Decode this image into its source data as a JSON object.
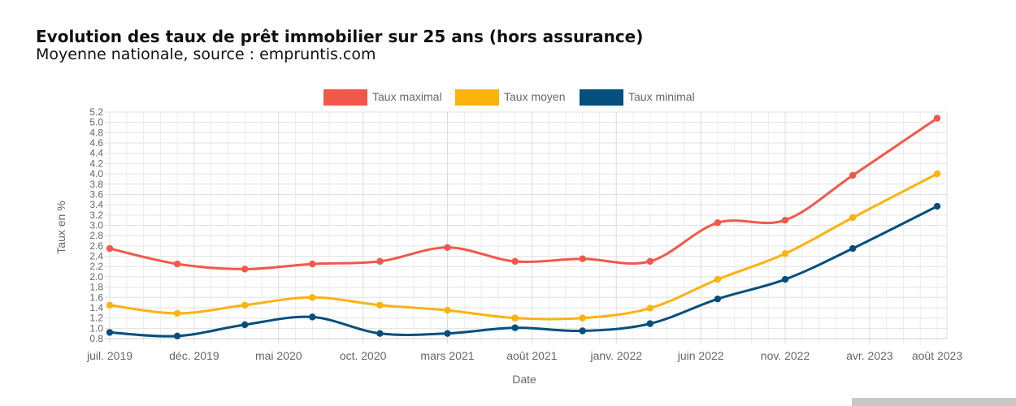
{
  "header": {
    "title": "Evolution des taux de prêt immobilier sur 25 ans (hors assurance)",
    "subtitle": "Moyenne nationale, source : empruntis.com"
  },
  "chart_data": {
    "type": "line",
    "x": [
      "juil. 2019",
      "déc. 2019",
      "mai 2020",
      "oct. 2020",
      "mars 2021",
      "août 2021",
      "janv. 2022",
      "juin 2022",
      "nov. 2022",
      "avr. 2023",
      "août 2023"
    ],
    "x_positions": [
      0,
      5,
      10,
      15,
      20,
      25,
      30,
      35,
      40,
      45,
      49
    ],
    "series": [
      {
        "name": "Taux maximal",
        "color": "#f1584a",
        "points": [
          [
            0,
            2.55
          ],
          [
            4,
            2.25
          ],
          [
            8,
            2.15
          ],
          [
            12,
            2.25
          ],
          [
            16,
            2.3
          ],
          [
            20,
            2.57
          ],
          [
            24,
            2.3
          ],
          [
            28,
            2.35
          ],
          [
            32,
            2.3
          ],
          [
            36,
            3.05
          ],
          [
            40,
            3.1
          ],
          [
            44,
            3.97
          ],
          [
            49,
            5.08
          ]
        ]
      },
      {
        "name": "Taux moyen",
        "color": "#fbb30e",
        "points": [
          [
            0,
            1.45
          ],
          [
            4,
            1.29
          ],
          [
            8,
            1.45
          ],
          [
            12,
            1.6
          ],
          [
            16,
            1.45
          ],
          [
            20,
            1.35
          ],
          [
            24,
            1.2
          ],
          [
            28,
            1.2
          ],
          [
            32,
            1.39
          ],
          [
            36,
            1.95
          ],
          [
            40,
            2.45
          ],
          [
            44,
            3.15
          ],
          [
            49,
            4.0
          ]
        ]
      },
      {
        "name": "Taux minimal",
        "color": "#044f7e",
        "points": [
          [
            0,
            0.92
          ],
          [
            4,
            0.85
          ],
          [
            8,
            1.07
          ],
          [
            12,
            1.22
          ],
          [
            16,
            0.9
          ],
          [
            20,
            0.9
          ],
          [
            24,
            1.01
          ],
          [
            28,
            0.95
          ],
          [
            32,
            1.09
          ],
          [
            36,
            1.57
          ],
          [
            40,
            1.95
          ],
          [
            44,
            2.55
          ],
          [
            49,
            3.37
          ]
        ]
      }
    ],
    "yticks": [
      "0.8",
      "1.0",
      "1.2",
      "1.4",
      "1.6",
      "1.8",
      "2.0",
      "2.2",
      "2.4",
      "2.6",
      "2.8",
      "3.0",
      "3.2",
      "3.4",
      "3.6",
      "3.8",
      "4.0",
      "4.2",
      "4.4",
      "4.6",
      "4.8",
      "5.0",
      "5.2"
    ],
    "xlabel": "Date",
    "ylabel": "Taux en %",
    "ylim": [
      0.8,
      5.2
    ],
    "xlim": [
      0,
      49
    ],
    "grid": true,
    "legend_position": "top-center"
  }
}
